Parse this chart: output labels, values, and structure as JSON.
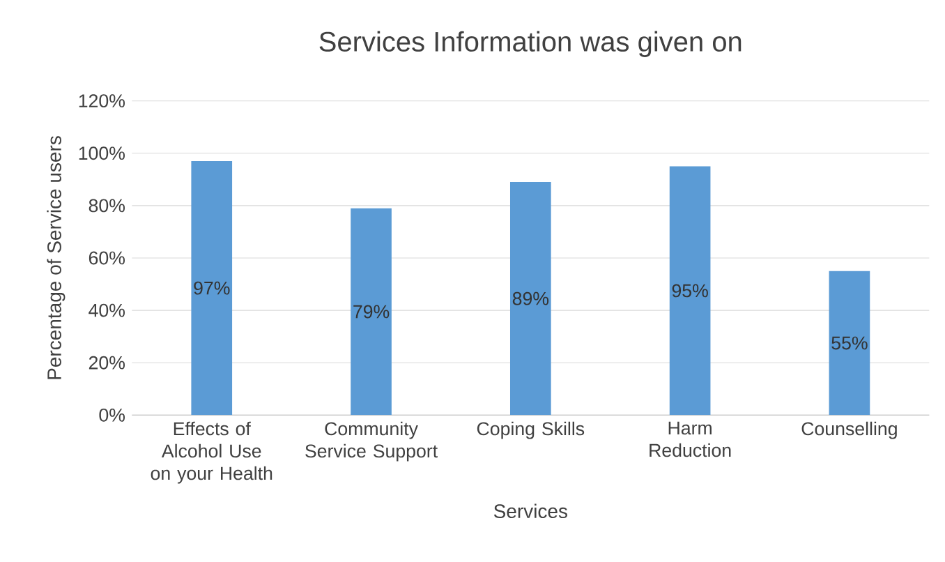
{
  "chart_data": {
    "type": "bar",
    "title": "Services Information was given on",
    "xlabel": "Services",
    "ylabel": "Percentage of Service users",
    "categories": [
      "Effects of Alcohol Use on your Health",
      "Community Service Support",
      "Coping Skills",
      "Harm Reduction",
      "Counselling"
    ],
    "values": [
      97,
      79,
      89,
      95,
      55
    ],
    "value_labels": [
      "97%",
      "79%",
      "89%",
      "95%",
      "55%"
    ],
    "color": "#5b9bd5",
    "ylim": [
      0,
      120
    ],
    "yticks": [
      {
        "value": 0,
        "label": "0%"
      },
      {
        "value": 20,
        "label": "20%"
      },
      {
        "value": 40,
        "label": "40%"
      },
      {
        "value": 60,
        "label": "60%"
      },
      {
        "value": 80,
        "label": "80%"
      },
      {
        "value": 100,
        "label": "100%"
      },
      {
        "value": 120,
        "label": "120%"
      }
    ],
    "grid": "y"
  }
}
